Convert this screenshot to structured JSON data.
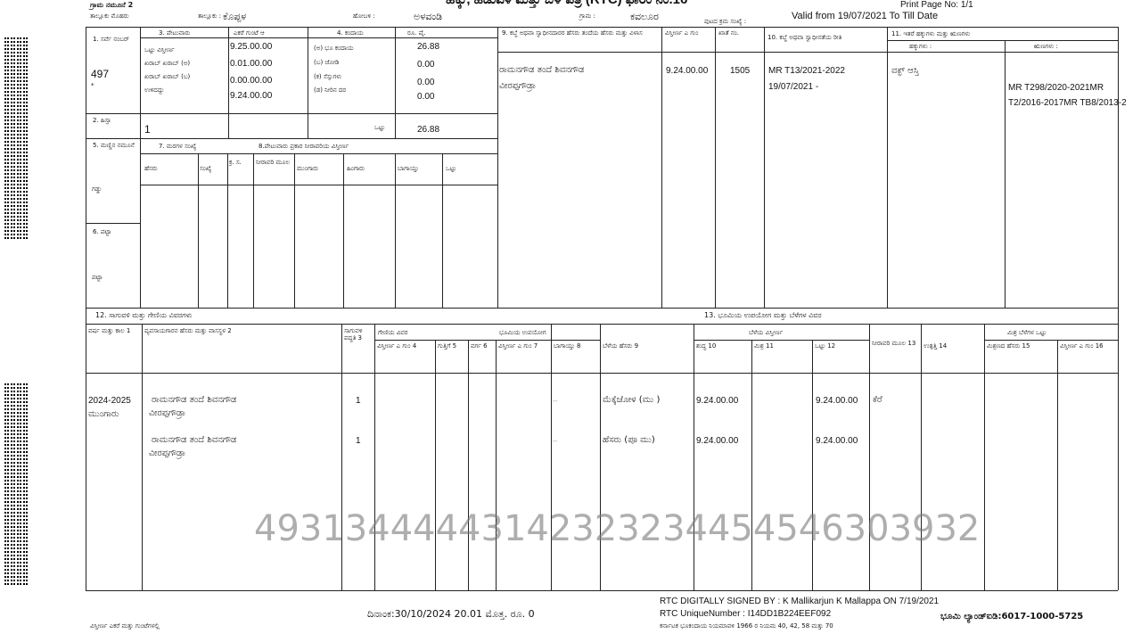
{
  "header": {
    "form_label": "ಗ್ರಾಮ ನಮೂನೆ 2",
    "title": "ಹಕ್ಕು, ಹಿಡುವಳಿ ಮತ್ತು ಬೆಳೆ ಪತ್ರ (RTC) ಫಾರಂ ನಂ.16",
    "print_page": "Print Page No: 1/1",
    "valid_from": "Valid from 19/07/2021 To Till Date",
    "taluk_code_label": "ತಾಲ್ಲೂಕು ಮೊಹರು",
    "taluk_label": "ತಾಲ್ಲೂಕು :",
    "taluk": "ಕೊಪ್ಪಳ",
    "hobli_label": "ಹೋಬಳಿ :",
    "hobli": "ಅಳವಂಡಿ",
    "village_label": "ಗ್ರಾಮ :",
    "village": "ಕವಲೂರ",
    "page_serial_label": "ಪುಟದ ಕ್ರಮ ಸಂಖ್ಯೆ :"
  },
  "top": {
    "survey_label": "1. ಸರ್ವೆ ನಂಬರ್",
    "survey_no": "497",
    "survey_mark": "*",
    "hissa_label": "2. ಹಿಸ್ಸಾ",
    "hissa": "1",
    "area_label": "3. ಪೇಟುವಾರು",
    "area_units": "ಎಕರೆ   ಗುಂಟೆ   ಆ",
    "area_rows": [
      "ಒಟ್ಟು ವಿಸ್ತೀರ್ಣ",
      "ಖರಾಬ್ ಖರಾಬ್ (ಅ)",
      "ಖರಾಬ್ ಖರಾಬ್ (ಬ)",
      "ಉಳಿದದ್ದು"
    ],
    "area_values": [
      "9.25.00.00",
      "0.01.00.00",
      "0.00.00.00",
      "9.24.00.00"
    ],
    "tax_label": "4. ಕಂದಾಯ",
    "tax_units": "ರೂ.   ಪೈ.",
    "tax_rows": [
      "(ಅ) ಭೂ ಕಂದಾಯ",
      "(ಬ) ಜೋಡಿ",
      "(ಕ) ಸೆಸ್ಸುಗಳು",
      "(ಡ) ನೀರಿನ ದರ"
    ],
    "tax_values": [
      "26.88",
      "0.00",
      "0.00",
      "0.00"
    ],
    "total_label": "ಒಟ್ಟು",
    "total_value": "26.88",
    "soil_label": "5. ಮಣ್ಣಿನ ನಮೂನೆ",
    "soil": "ಗಡ್ಡು",
    "trees_label": "7. ಮರಗಳ ಸಂಖ್ಯೆ",
    "trees_cols": [
      "ಹೆಸರು",
      "ಸಂಖ್ಯೆ"
    ],
    "irrigation_label": "8.ಪೇಟುವಾರು ಪ್ರಕಾರ ನೀರಾವರಿಯ ವಿಸ್ತೀರ್ಣ",
    "irrigation_cols": [
      "ಕ್ರ. ಸ.",
      "ನೀರಾವರಿ ಮೂಲ",
      "ಮುಂಗಾರು",
      "ಹಿಂಗಾರು",
      "ಬಾಗಾಯ್ತು",
      "ಒಟ್ಟು"
    ],
    "pahani_label": "6. ಪಟ್ಟಾ",
    "pahani": "ಪಟ್ಟಾ",
    "owner_label": "9. ಕಬ್ಜೆ ಅಥವಾ ಸ್ವಾಧೀನದಾರರ ಹೆಸರು   ತಂದೆಯ ಹೆಸರು ಮತ್ತು ವಿಳಾಸ",
    "owner_area_label": "ವಿಸ್ತೀರ್ಣ ಎ   ಗುಂ",
    "khata_label": "ಖಾತೆ ನಂ.",
    "owner_name_1": "ರಾಮನಗೌಡ ತಂದೆ ಶಿವನಗೌಡ",
    "owner_name_2": "ವೀರಪ್ಪಗೌಡ್ರಾ",
    "owner_area": "9.24.00.00",
    "khata": "1505",
    "mutation_label": "10. ಕಬ್ಜೆ ಅಥವಾ ಸ್ವಾಧೀನತೆಯ ರೀತಿ",
    "mutation_1": "MR T13/2021-2022",
    "mutation_2": "19/07/2021 -",
    "rights_label": "11. ಇತರೆ ಹಕ್ಕುಗಳು ಮತ್ತು ಋಣಗಳು",
    "rights_sub": "ಹಕ್ಕುಗಳು :",
    "liabilities_sub": "ಋಣಗಳು :",
    "rights": "ವಕ್ಫ್ ಆಸ್ತಿ",
    "liabilities_1": "MR T298/2020-2021MR",
    "liabilities_2": "T2/2016-2017MR TB8/2013-2"
  },
  "crop": {
    "title": "12. ಸಾಗುವಳಿ ಮತ್ತು ಗೇಣಿಯ ವಿವರಗಳು",
    "land_use_title": "13. ಭೂಮಿಯ ಉಪಯೋಗ ಮತ್ತು ಬೆಳೆಗಳ ವಿವರ",
    "watermark": "49313444443142323234454546303932",
    "headers": [
      "ವರ್ಷ ಮತ್ತು ಕಾಲ 1",
      "ವ್ಯವಸಾಯಗಾರನ ಹೆಸರು ಮತ್ತು ವಾಸಸ್ಥಳ 2",
      "ಸಾಗುವಳಿ ಪದ್ಧತಿ 3",
      "ವಿಸ್ತೀರ್ಣ ಎ ಗುಂ 4",
      "ಗುತ್ತಿಗೆ 5",
      "ವರ್ಗ 6",
      "ವಿಸ್ತೀರ್ಣ ಎ ಗುಂ 7",
      "ಬಾಗಾಯ್ತು 8",
      "ಬೆಳೆಯ ಹೆಸರು 9",
      "ಶುದ್ಧ 10",
      "ಮಿಶ್ರ 11",
      "ಒಟ್ಟು 12",
      "ನೀರಾವರಿ ಮೂಲ 13",
      "ಉತ್ಪತ್ತಿ 14",
      "ಮಿಶ್ರಣದ ಹೆಸರು 15",
      "ವಿಸ್ತೀರ್ಣ ಎ ಗುಂ 16"
    ],
    "group_lease": "ಗೇಣಿಯ ವಿವರ",
    "group_uncultivated": "ಭೂಮಿಯ ಉಪಯೋಗ",
    "group_crop_area": "ಬೆಳೆಯ ವಿಸ್ತೀರ್ಣ",
    "group_mixed": "ಮಿಶ್ರ ಬೆಳೆಗಳ ಒಟ್ಟು",
    "rows": [
      {
        "year": "2024-2025",
        "season": "ಮುಂಗಾರು",
        "name_1": "ರಾಮನಗೌಡ ತಂದೆ ಶಿವನಗೌಡ",
        "name_2": "ವೀರಪ್ಪಗೌಡ್ರಾ",
        "method": "1",
        "dash": "--",
        "crop_1": "ಮೆಕ್ಕೆಜೋಳ (ಮು",
        "crop_2": ")",
        "pure": "9.24.00.00",
        "total": "9.24.00.00",
        "source": "ಕೆರೆ"
      },
      {
        "year": "",
        "season": "",
        "name_1": "ರಾಮನಗೌಡ ತಂದೆ ಶಿವನಗೌಡ",
        "name_2": "ವೀರಪ್ಪಗೌಡ್ರಾ",
        "method": "1",
        "dash": "--",
        "crop_1": "ಹೆಸರು (ಪೂ ಮು)",
        "crop_2": "",
        "pure": "9.24.00.00",
        "total": "9.24.00.00",
        "source": ""
      }
    ]
  },
  "footer": {
    "area_note": "ವಿಸ್ತೀರ್ಣ ಎಕರೆ ಮತ್ತು ಗುಂಟೆಗಳಲ್ಲಿ",
    "date": "ದಿನಾಂಕ:30/10/2024 20.01  ಮೊತ್ತ. ರೂ.  0",
    "signed": "RTC DIGITALLY SIGNED BY : K Mallikarjun K Mallappa ON 7/19/2021",
    "unique": "RTC UniqueNumber : I14DD1B224EEF092",
    "act": "ಕರ್ನಾಟಕ ಭೂಕಂದಾಯ ನಿಯಮಾವಳಿ 1966 ರ ನಿಯಮ 40, 42, 58 ಮತ್ತು 70",
    "bhoomi": "ಭೂಮಿ ಲ್ಯಾಂಡ್‌ಐಡಿ:6017-1000-5725"
  }
}
